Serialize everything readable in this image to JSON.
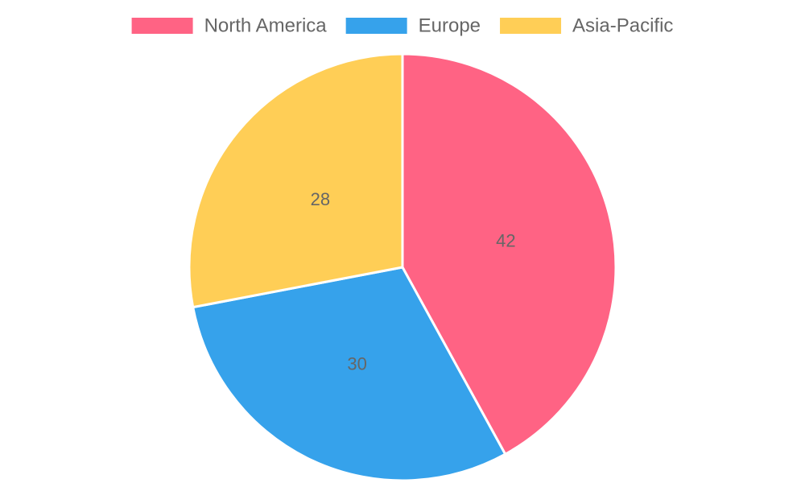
{
  "chart_data": {
    "type": "pie",
    "series": [
      {
        "name": "North America",
        "value": 42,
        "color": "#ff6384"
      },
      {
        "name": "Europe",
        "value": 30,
        "color": "#36a2eb"
      },
      {
        "name": "Asia-Pacific",
        "value": 28,
        "color": "#ffce56"
      }
    ],
    "legend_position": "top",
    "show_value_labels": true
  },
  "colors": {
    "label_text": "#666666",
    "slice_border": "#ffffff",
    "background": "#ffffff"
  }
}
